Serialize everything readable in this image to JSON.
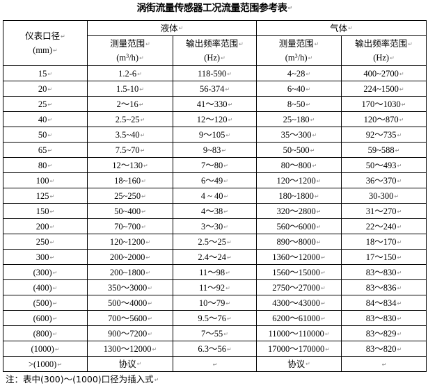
{
  "title": "涡街流量传感器工况流量范围参考表",
  "header": {
    "diameter_label": "仪表口径",
    "diameter_unit": "(mm)",
    "liquid": "液体",
    "gas": "气体",
    "measure_range": "测量范围",
    "flow_unit_prefix": "(m",
    "flow_unit_sup": "3",
    "flow_unit_suffix": "/h)",
    "freq_range": "输出频率范围",
    "freq_unit": "(Hz)"
  },
  "rows": [
    [
      "15",
      "1.2-6",
      "118-590",
      "4~28",
      "400~2700"
    ],
    [
      "20",
      "1.5-10",
      "56-374",
      "6~40",
      "224~1500"
    ],
    [
      "25",
      "2～16",
      "41～330",
      "8~50",
      "170～1030"
    ],
    [
      "40",
      "2.5~25",
      "12～120",
      "25~180",
      "120～870"
    ],
    [
      "50",
      "3.5~40",
      "9～105",
      "35～300",
      "92～735"
    ],
    [
      "65",
      "7.5~70",
      "9~83",
      "50~500",
      "59~588"
    ],
    [
      "80",
      "12～130",
      "7～80",
      "80～800",
      "50～493"
    ],
    [
      "100",
      "18~160",
      "6～49",
      "120～1200",
      "36～370"
    ],
    [
      "125",
      "25~250",
      "4 ~ 40",
      "180~1800",
      "30-300"
    ],
    [
      "150",
      "50~400",
      "4～38",
      "320～2800",
      "31～270"
    ],
    [
      "200",
      "70~700",
      "3～30",
      "560～6000",
      "22～240"
    ],
    [
      "250",
      "120~1200",
      "2.5～25",
      "890～8000",
      "18～170"
    ],
    [
      "300",
      "200~2000",
      "2.4～24",
      "1360～12000",
      "17～150"
    ],
    [
      "(300)",
      "200~1800",
      "11～98",
      "1560～15000",
      "83～830"
    ],
    [
      "(400)",
      "350～3000",
      "11～92",
      "2750～27000",
      "83～836"
    ],
    [
      "(500)",
      "500～4000",
      "10～79",
      "4300～43000",
      "84～834"
    ],
    [
      "(600)",
      "700～5600",
      "9.5～76",
      "6200～61000",
      "83～830"
    ],
    [
      "(800)",
      "900～7200",
      "7～55",
      "11000～110000",
      "83～829"
    ],
    [
      "(1000)",
      "1300～12000",
      "6.3～56",
      "17000～170000",
      "83～820"
    ],
    [
      ">(1000)",
      "协议",
      "",
      "协议",
      ""
    ]
  ],
  "note": "注：表中(300)～(1000)口径为插入式"
}
